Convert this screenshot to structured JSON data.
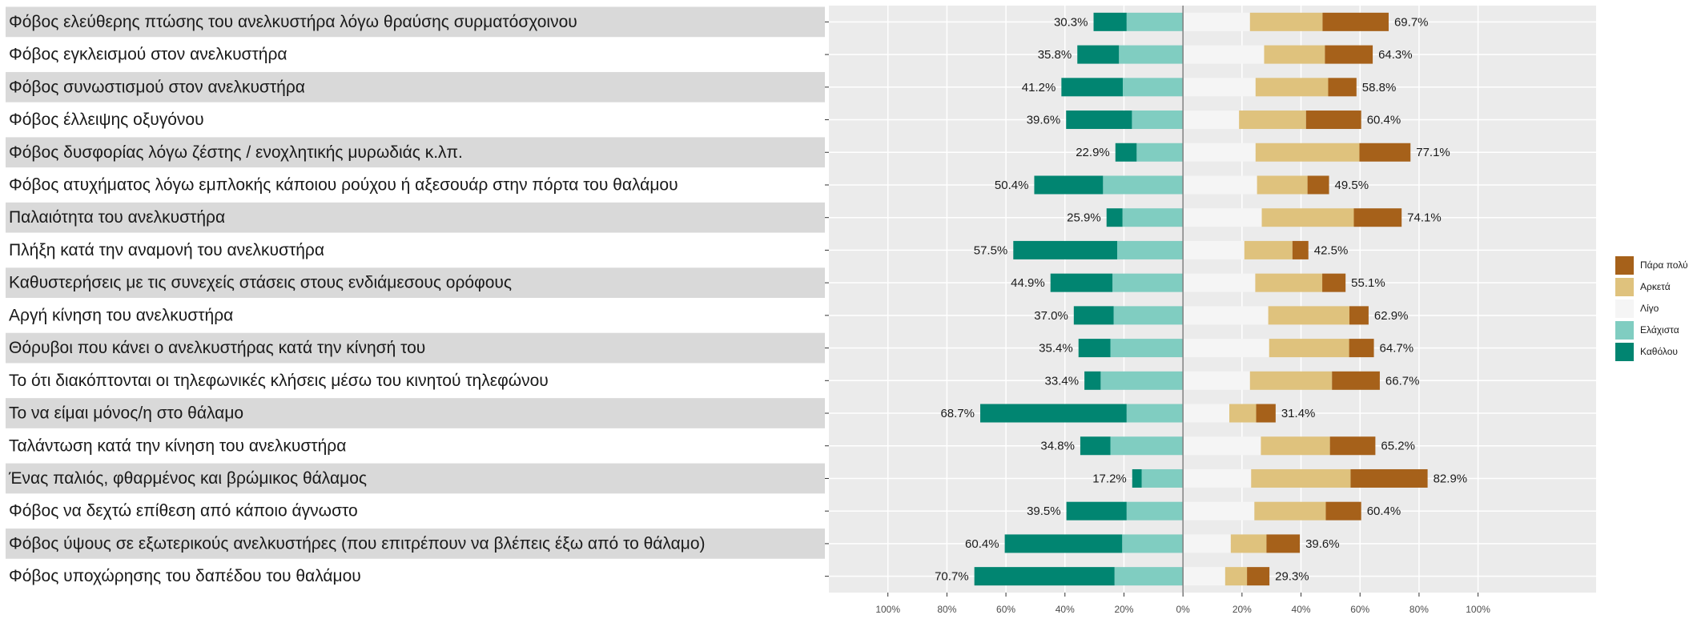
{
  "chart_data": {
    "type": "bar",
    "orientation": "horizontal",
    "stacked": true,
    "grid": true,
    "legend": "right",
    "xlim": [
      -120,
      140
    ],
    "xticks": [
      {
        "value": -100,
        "label": "100%"
      },
      {
        "value": -80,
        "label": "80%"
      },
      {
        "value": -60,
        "label": "60%"
      },
      {
        "value": -40,
        "label": "40%"
      },
      {
        "value": -20,
        "label": "20%"
      },
      {
        "value": 0,
        "label": "0%"
      },
      {
        "value": 20,
        "label": "20%"
      },
      {
        "value": 40,
        "label": "40%"
      },
      {
        "value": 60,
        "label": "60%"
      },
      {
        "value": 80,
        "label": "80%"
      },
      {
        "value": 100,
        "label": "100%"
      }
    ],
    "categories": [
      "Φόβος ελεύθερης πτώσης του ανελκυστήρα λόγω θραύσης συρματόσχοινου",
      "Φόβος εγκλεισμού στον ανελκυστήρα",
      "Φόβος συνωστισμού στον ανελκυστήρα",
      "Φόβος έλλειψης οξυγόνου",
      "Φόβος δυσφορίας λόγω ζέστης / ενοχλητικής μυρωδιάς κ.λπ.",
      "Φόβος ατυχήματος λόγω εμπλοκής κάποιου ρούχου ή αξεσουάρ στην πόρτα του θαλάμου",
      "Παλαιότητα του ανελκυστήρα",
      "Πλήξη κατά την αναμονή του ανελκυστήρα",
      "Καθυστερήσεις με τις συνεχείς στάσεις στους ενδιάμεσους ορόφους",
      "Αργή κίνηση του ανελκυστήρα",
      "Θόρυβοι που κάνει ο ανελκυστήρας κατά την κίνησή του",
      "Το ότι διακόπτονται οι τηλεφωνικές κλήσεις μέσω του κινητού τηλεφώνου",
      "Το να είμαι μόνος/η στο θάλαμο",
      "Ταλάντωση κατά την κίνηση του ανελκυστήρα",
      "Ένας παλιός, φθαρμένος και βρώμικος θάλαμος",
      "Φόβος να δεχτώ επίθεση από κάποιο άγνωστο",
      "Φόβος ύψους σε εξωτερικούς ανελκυστήρες (που επιτρέπουν να βλέπεις έξω από το θάλαμο)",
      "Φόβος υποχώρησης του δαπέδου του θαλάμου"
    ],
    "series": [
      {
        "name": "Καθόλου",
        "color": "#018571",
        "values": [
          -11.2,
          -14.1,
          -20.8,
          -22.3,
          -7.2,
          -23.3,
          -5.4,
          -35.2,
          -21.0,
          -13.5,
          -10.8,
          -5.5,
          -49.6,
          -10.2,
          -3.2,
          -20.4,
          -39.8,
          -47.5
        ]
      },
      {
        "name": "Ελάχιστα",
        "color": "#80cdc1",
        "values": [
          -19.1,
          -21.7,
          -20.4,
          -17.3,
          -15.7,
          -27.1,
          -20.5,
          -22.3,
          -23.9,
          -23.5,
          -24.6,
          -27.9,
          -19.1,
          -24.6,
          -14.0,
          -19.1,
          -20.6,
          -23.2
        ]
      },
      {
        "name": "Λίγο",
        "color": "#f5f5f5",
        "values": [
          22.7,
          27.5,
          24.6,
          19.0,
          24.6,
          25.1,
          26.7,
          20.8,
          24.5,
          28.9,
          29.2,
          22.7,
          15.7,
          26.4,
          23.1,
          24.2,
          16.2,
          14.3
        ]
      },
      {
        "name": "Αρκετά",
        "color": "#dfc27d",
        "values": [
          24.6,
          20.6,
          24.6,
          22.7,
          35.2,
          17.1,
          31.2,
          16.3,
          22.7,
          27.5,
          27.1,
          27.8,
          9.1,
          23.4,
          33.7,
          24.2,
          12.1,
          7.4
        ]
      },
      {
        "name": "Πάρα πολύ",
        "color": "#a6611a",
        "values": [
          22.4,
          16.2,
          9.6,
          18.7,
          17.3,
          7.3,
          16.2,
          5.4,
          7.9,
          6.5,
          8.4,
          16.2,
          6.6,
          15.4,
          26.1,
          12.0,
          11.3,
          7.6
        ]
      }
    ],
    "left_totals": {
      "values": [
        30.3,
        35.8,
        41.2,
        39.6,
        22.9,
        50.4,
        25.9,
        57.5,
        44.9,
        37.0,
        35.4,
        33.4,
        68.7,
        34.8,
        17.2,
        39.5,
        60.4,
        70.7
      ],
      "value_labels": [
        "30.3%",
        "35.8%",
        "41.2%",
        "39.6%",
        "22.9%",
        "50.4%",
        "25.9%",
        "57.5%",
        "44.9%",
        "37.0%",
        "35.4%",
        "33.4%",
        "68.7%",
        "34.8%",
        "17.2%",
        "39.5%",
        "60.4%",
        "70.7%"
      ]
    },
    "right_totals": {
      "values": [
        69.7,
        64.3,
        58.8,
        60.4,
        77.1,
        49.5,
        74.1,
        42.5,
        55.1,
        62.9,
        64.7,
        66.7,
        31.4,
        65.2,
        82.9,
        60.4,
        39.6,
        29.3
      ],
      "value_labels": [
        "69.7%",
        "64.3%",
        "58.8%",
        "60.4%",
        "77.1%",
        "49.5%",
        "74.1%",
        "42.5%",
        "55.1%",
        "62.9%",
        "64.7%",
        "66.7%",
        "31.4%",
        "65.2%",
        "82.9%",
        "60.4%",
        "39.6%",
        "29.3%"
      ]
    }
  }
}
